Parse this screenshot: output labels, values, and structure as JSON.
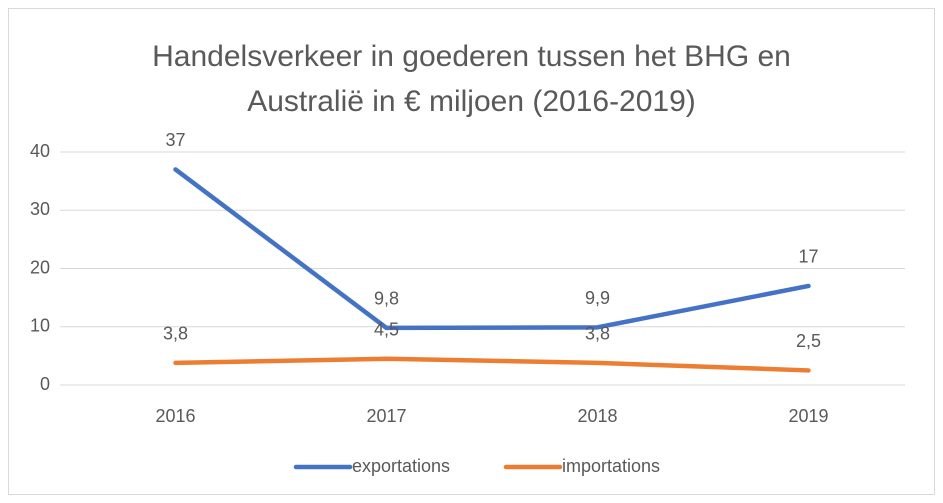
{
  "chart_data": {
    "type": "line",
    "title": "Handelsverkeer in goederen tussen het BHG en Australië in € miljoen (2016-2019)",
    "categories": [
      "2016",
      "2017",
      "2018",
      "2019"
    ],
    "series": [
      {
        "name": "exportations",
        "color": "#4472c4",
        "values": [
          37,
          9.8,
          9.9,
          17
        ],
        "value_labels": [
          "37",
          "9,8",
          "9,9",
          "17"
        ]
      },
      {
        "name": "importations",
        "color": "#ed7d31",
        "values": [
          3.8,
          4.5,
          3.8,
          2.5
        ],
        "value_labels": [
          "3,8",
          "4,5",
          "3,8",
          "2,5"
        ]
      }
    ],
    "ylim": [
      0,
      40
    ],
    "yticks": [
      0,
      10,
      20,
      30,
      40
    ],
    "grid": true,
    "legend": "bottom"
  }
}
